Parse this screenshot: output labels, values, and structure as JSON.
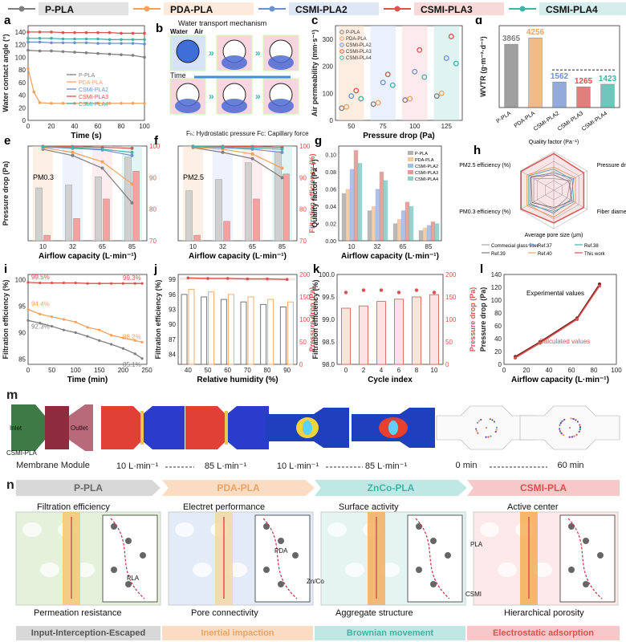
{
  "legend": {
    "items": [
      {
        "name": "P-PLA",
        "color": "#7f7f7f"
      },
      {
        "name": "PDA-PLA",
        "color": "#f0a35e"
      },
      {
        "name": "CSMI-PLA2",
        "color": "#6e8fd0"
      },
      {
        "name": "CSMI-PLA3",
        "color": "#d9534f"
      },
      {
        "name": "CSMI-PLA4",
        "color": "#3fb3a6"
      }
    ]
  },
  "panel_labels": [
    "a",
    "b",
    "c",
    "d",
    "e",
    "f",
    "g",
    "h",
    "i",
    "j",
    "k",
    "l",
    "m",
    "n"
  ],
  "colors": {
    "p": "#7f7f7f",
    "pda": "#f0a35e",
    "c2": "#6e8fd0",
    "c3": "#d9534f",
    "c4": "#3fb3a6"
  },
  "chart_data": [
    {
      "id": "a",
      "type": "line",
      "xlabel": "Time (s)",
      "ylabel": "Water contact angle (°)",
      "xlim": [
        0,
        100
      ],
      "ylim": [
        0,
        150
      ],
      "xticks": [
        0,
        20,
        40,
        60,
        80,
        100
      ],
      "yticks": [
        0,
        20,
        40,
        60,
        80,
        100,
        120,
        140
      ],
      "legend": [
        "P-PLA",
        "PDA-PLA",
        "CSMI-PLA2",
        "CSMI-PLA3",
        "CSMI-PLA4"
      ],
      "series": [
        {
          "name": "P-PLA",
          "x": [
            0,
            10,
            20,
            30,
            40,
            50,
            60,
            70,
            80,
            90,
            100
          ],
          "values": [
            111,
            110,
            110,
            109,
            108,
            107,
            106,
            105,
            104,
            103,
            100
          ]
        },
        {
          "name": "PDA-PLA",
          "x": [
            0,
            5,
            10,
            20,
            30,
            40,
            50,
            60,
            70,
            80,
            90,
            100
          ],
          "values": [
            82,
            45,
            28,
            27,
            27,
            27,
            27,
            27,
            27,
            27,
            27,
            27
          ]
        },
        {
          "name": "CSMI-PLA2",
          "x": [
            0,
            10,
            20,
            30,
            40,
            50,
            60,
            70,
            80,
            90,
            100
          ],
          "values": [
            124,
            124,
            123,
            123,
            123,
            123,
            122,
            122,
            122,
            122,
            121
          ]
        },
        {
          "name": "CSMI-PLA3",
          "x": [
            0,
            10,
            20,
            30,
            40,
            50,
            60,
            70,
            80,
            90,
            100
          ],
          "values": [
            140,
            140,
            140,
            139,
            139,
            139,
            139,
            139,
            138,
            138,
            138
          ]
        },
        {
          "name": "CSMI-PLA4",
          "x": [
            0,
            10,
            20,
            30,
            40,
            50,
            60,
            70,
            80,
            90,
            100
          ],
          "values": [
            130,
            130,
            130,
            129,
            129,
            129,
            129,
            128,
            128,
            128,
            128
          ]
        }
      ]
    },
    {
      "id": "c",
      "type": "scatter",
      "xlabel": "Pressure drop (Pa)",
      "ylabel": "Air permeability (mm·s⁻¹)",
      "categories": [
        "50",
        "75",
        "100",
        "125"
      ],
      "ylim": [
        0,
        350
      ],
      "yticks": [
        0,
        100,
        200,
        300
      ],
      "legend": [
        "P-PLA",
        "PDA-PLA",
        "CSMI-PLA2",
        "CSMI-PLA3",
        "CSMI-PLA4"
      ],
      "series": [
        {
          "name": "P-PLA",
          "values": [
            45,
            60,
            75,
            90
          ]
        },
        {
          "name": "PDA-PLA",
          "values": [
            50,
            65,
            80,
            100
          ]
        },
        {
          "name": "CSMI-PLA2",
          "values": [
            90,
            140,
            180,
            230
          ]
        },
        {
          "name": "CSMI-PLA3",
          "values": [
            110,
            170,
            260,
            310
          ]
        },
        {
          "name": "CSMI-PLA4",
          "values": [
            80,
            130,
            160,
            210
          ]
        }
      ]
    },
    {
      "id": "d",
      "type": "bar",
      "ylabel": "WVTR (g·m⁻²·d⁻¹)",
      "ylim": [
        0,
        5000
      ],
      "categories": [
        "P-PLA",
        "PDA-PLA",
        "CSMI-PLA2",
        "CSMI-PLA3",
        "CSMI-PLA4"
      ],
      "values": [
        3865,
        4256,
        1562,
        1265,
        1423
      ]
    },
    {
      "id": "e",
      "type": "bar",
      "xlabel": "Airflow capacity (L·min⁻¹)",
      "ylabel": "Pressure drop (Pa)",
      "annotation": "PM0.3",
      "categories": [
        "10",
        "32",
        "65",
        "85"
      ],
      "series": [
        {
          "name": "P-PLA",
          "values": [
            95,
            100,
            115,
            150
          ]
        },
        {
          "name": "CSMI-PLA3",
          "values": [
            10,
            40,
            75,
            125
          ]
        }
      ],
      "eff_series": [
        {
          "name": "P-PLA",
          "values": [
            99,
            97,
            93,
            82
          ]
        },
        {
          "name": "PDA-PLA",
          "values": [
            99.5,
            98,
            95,
            88
          ]
        },
        {
          "name": "CSMI-PLA2",
          "values": [
            99.7,
            99.3,
            98.8,
            97
          ]
        },
        {
          "name": "CSMI-PLA3",
          "values": [
            99.9,
            99.8,
            99.6,
            99.3
          ]
        },
        {
          "name": "CSMI-PLA4",
          "values": [
            99.8,
            99.5,
            99,
            98
          ]
        }
      ],
      "y2lim": [
        70,
        100
      ],
      "y2ticks": [
        70,
        80,
        90,
        100
      ]
    },
    {
      "id": "f",
      "type": "bar",
      "xlabel": "Airflow capacity (L·min⁻¹)",
      "ylabel": "Filtration efficiency (%)",
      "annotation": "PM2.5",
      "categories": [
        "10",
        "32",
        "65",
        "85"
      ],
      "series": [
        {
          "name": "P-PLA",
          "values": [
            90,
            110,
            140,
            160
          ]
        },
        {
          "name": "CSMI-PLA3",
          "values": [
            10,
            35,
            75,
            120
          ]
        }
      ],
      "eff_series": [
        {
          "name": "P-PLA",
          "values": [
            99.5,
            98,
            96,
            90
          ]
        },
        {
          "name": "PDA-PLA",
          "values": [
            99.6,
            99,
            97.5,
            93
          ]
        },
        {
          "name": "CSMI-PLA2",
          "values": [
            99.8,
            99.5,
            99,
            98
          ]
        },
        {
          "name": "CSMI-PLA3",
          "values": [
            99.95,
            99.9,
            99.8,
            99.6
          ]
        },
        {
          "name": "CSMI-PLA4",
          "values": [
            99.9,
            99.7,
            99.4,
            99
          ]
        }
      ],
      "y2lim": [
        70,
        100
      ],
      "y2ticks": [
        70,
        80,
        90,
        100
      ]
    },
    {
      "id": "g",
      "type": "bar",
      "xlabel": "Airflow capacity (L·min⁻¹)",
      "ylabel": "Quality factor (Pa⁻¹)",
      "ylim": [
        0,
        0.11
      ],
      "yticks": [
        0.0,
        0.02,
        0.04,
        0.06,
        0.08,
        0.1
      ],
      "categories": [
        "10",
        "32",
        "65",
        "85"
      ],
      "legend": [
        "P-PLA",
        "PDA-PLA",
        "CSMI-PLA2",
        "CSMI-PLA3",
        "CSMI-PLA4"
      ],
      "series": [
        {
          "name": "P-PLA",
          "values": [
            0.055,
            0.035,
            0.02,
            0.012
          ]
        },
        {
          "name": "PDA-PLA",
          "values": [
            0.06,
            0.04,
            0.025,
            0.015
          ]
        },
        {
          "name": "CSMI-PLA2",
          "values": [
            0.083,
            0.06,
            0.035,
            0.018
          ]
        },
        {
          "name": "CSMI-PLA3",
          "values": [
            0.105,
            0.08,
            0.045,
            0.022
          ]
        },
        {
          "name": "CSMI-PLA4",
          "values": [
            0.09,
            0.07,
            0.04,
            0.02
          ]
        }
      ]
    },
    {
      "id": "h",
      "type": "radar",
      "axes": [
        "Quality factor (Pa⁻¹)",
        "Pressure drop (Pa)",
        "Fiber diameter (nm)",
        "Average pore size (μm)",
        "PM0.3 efficiency (%)",
        "PM2.5 efficiency (%)"
      ],
      "legend": [
        "Commecial glass filter",
        "Ref.37",
        "Ref.38",
        "Ref.39",
        "Ref.40",
        "This work"
      ],
      "legend_colors": [
        "#aaaaaa",
        "#6e8fd0",
        "#3fb3a6",
        "#7f7f7f",
        "#f0a35e",
        "#d9534f"
      ],
      "series": [
        {
          "name": "Commecial glass filter",
          "values": [
            0.3,
            0.5,
            0.4,
            0.5,
            0.6,
            0.6
          ]
        },
        {
          "name": "Ref.37",
          "values": [
            0.45,
            0.6,
            0.5,
            0.6,
            0.7,
            0.7
          ]
        },
        {
          "name": "Ref.38",
          "values": [
            0.55,
            0.55,
            0.6,
            0.55,
            0.75,
            0.75
          ]
        },
        {
          "name": "Ref.39",
          "values": [
            0.4,
            0.45,
            0.55,
            0.45,
            0.65,
            0.68
          ]
        },
        {
          "name": "Ref.40",
          "values": [
            0.6,
            0.65,
            0.65,
            0.7,
            0.8,
            0.8
          ]
        },
        {
          "name": "This work",
          "values": [
            0.95,
            0.9,
            0.9,
            0.85,
            0.98,
            0.98
          ]
        }
      ]
    },
    {
      "id": "i",
      "type": "line",
      "xlabel": "Time (min)",
      "ylabel": "Filtration efficiency (%)",
      "xlim": [
        0,
        250
      ],
      "ylim": [
        84,
        101
      ],
      "xticks": [
        0,
        50,
        100,
        150,
        200,
        250
      ],
      "yticks": [
        85,
        90,
        95,
        100
      ],
      "series": [
        {
          "name": "CSMI-PLA3",
          "x": [
            0,
            25,
            50,
            75,
            100,
            125,
            150,
            175,
            200,
            225,
            240
          ],
          "values": [
            99.5,
            99.4,
            99.4,
            99.4,
            99.4,
            99.3,
            99.3,
            99.3,
            99.3,
            99.3,
            99.3
          ]
        },
        {
          "name": "PDA-PLA",
          "x": [
            0,
            25,
            50,
            75,
            100,
            125,
            150,
            175,
            200,
            225,
            240
          ],
          "values": [
            94.4,
            93.5,
            93,
            92.5,
            92,
            91,
            90.5,
            89.5,
            89,
            88.5,
            88.2
          ]
        },
        {
          "name": "P-PLA",
          "x": [
            0,
            25,
            50,
            75,
            100,
            125,
            150,
            175,
            200,
            225,
            240
          ],
          "values": [
            92.3,
            91.8,
            91.2,
            90.5,
            90,
            89.3,
            88.5,
            87.8,
            87,
            86,
            85.1
          ]
        }
      ],
      "labels": [
        "99.5%",
        "99.3%",
        "94.4%",
        "88.2%",
        "92.3%",
        "85.1%"
      ]
    },
    {
      "id": "j",
      "type": "bar",
      "xlabel": "Relative humidity (%)",
      "ylabel": "Filtration efficiency (%)",
      "y2label": "Pressure drop (Pa)",
      "categories": [
        "40",
        "50",
        "60",
        "70",
        "80",
        "90"
      ],
      "ylim": [
        82,
        100
      ],
      "yticks": [
        84,
        87,
        90,
        93,
        96,
        99
      ],
      "y2lim": [
        0,
        200
      ],
      "y2ticks": [
        0,
        50,
        100,
        150,
        200
      ],
      "series": [
        {
          "name": "P-PLA",
          "values": [
            96,
            95.5,
            95,
            94.5,
            94,
            93.5
          ]
        },
        {
          "name": "PDA-PLA",
          "values": [
            97,
            96.5,
            96,
            95.5,
            95,
            94.5
          ]
        },
        {
          "name": "CSMI-PLA3",
          "values": [
            99.3,
            99.2,
            99.2,
            99.1,
            99.1,
            99
          ]
        }
      ]
    },
    {
      "id": "k",
      "type": "bar",
      "xlabel": "Cycle index",
      "ylabel": "Filtration efficiency (%)",
      "y2label": "Pressure drop (Pa)",
      "categories": [
        "0",
        "2",
        "4",
        "6",
        "8",
        "10"
      ],
      "ylim": [
        98.0,
        100.0
      ],
      "yticks": [
        98.0,
        98.5,
        99.0,
        99.5,
        100.0
      ],
      "y2lim": [
        0,
        200
      ],
      "y2ticks": [
        0,
        50,
        100,
        150,
        200
      ],
      "values": [
        99.25,
        99.3,
        99.4,
        99.45,
        99.5,
        99.55
      ],
      "pressure": [
        160,
        165,
        165,
        160,
        165,
        160
      ]
    },
    {
      "id": "l",
      "type": "line",
      "xlabel": "Airflow capacity (L·min⁻¹)",
      "ylabel": "Pressure drop (Pa)",
      "xlim": [
        0,
        100
      ],
      "ylim": [
        0,
        140
      ],
      "xticks": [
        0,
        20,
        40,
        60,
        80,
        100
      ],
      "yticks": [
        0,
        20,
        40,
        60,
        80,
        100,
        120,
        140
      ],
      "series": [
        {
          "name": "Experimental values",
          "x": [
            10,
            32,
            65,
            85
          ],
          "values": [
            12,
            35,
            72,
            125
          ]
        },
        {
          "name": "Calculated values",
          "x": [
            10,
            32,
            65,
            85
          ],
          "values": [
            10,
            33,
            70,
            122
          ]
        }
      ]
    }
  ],
  "panel_b": {
    "title": "Water transport mechanism",
    "water": "Water",
    "air": "Air",
    "time": "Time",
    "caption": "Fₕ: Hydrostatic pressure Fc: Capillary force"
  },
  "panel_m": {
    "inlet": "Inlet",
    "outlet": "Outlet",
    "membrane_label": "CSMI-PLA",
    "captions": [
      "Membrane Module",
      "10 L·min⁻¹",
      "85 L·min⁻¹",
      "10 L·min⁻¹",
      "85 L·min⁻¹",
      "0 min",
      "60 min"
    ]
  },
  "panel_n": {
    "stages": [
      "P-PLA",
      "PDA-PLA",
      "ZnCo-PLA",
      "CSMI-PLA"
    ],
    "top_labels": [
      "Filtration efficiency",
      "Electret performance",
      "Surface activity",
      "Active center"
    ],
    "bottom_labels": [
      "Permeation resistance",
      "Pore connectivity",
      "Aggregate structure",
      "Hierarchical porosity"
    ],
    "inner_labels": {
      "pla1": "PLA",
      "pda": "PDA",
      "znco": "Zn/Co",
      "pla2": "PLA",
      "csmi": "CSMI"
    },
    "mechanisms": [
      "Input-Interception-Escaped",
      "Inertial impaction",
      "Brownian movement",
      "Electrostatic adsorption"
    ]
  }
}
